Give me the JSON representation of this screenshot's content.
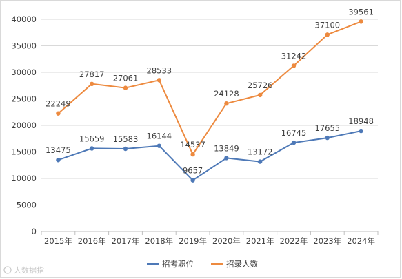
{
  "chart_data": {
    "type": "line",
    "categories": [
      "2015年",
      "2016年",
      "2017年",
      "2018年",
      "2019年",
      "2020年",
      "2021年",
      "2022年",
      "2023年",
      "2024年"
    ],
    "series": [
      {
        "name": "招考职位",
        "color": "#4e79b7",
        "values": [
          13475,
          15659,
          15583,
          16144,
          9657,
          13849,
          13172,
          16745,
          17655,
          18948
        ]
      },
      {
        "name": "招录人数",
        "color": "#ed8a3f",
        "values": [
          22249,
          27817,
          27061,
          28533,
          14537,
          24128,
          25726,
          31242,
          37100,
          39561
        ]
      }
    ],
    "yticks": [
      "0",
      "5000",
      "10000",
      "15000",
      "20000",
      "25000",
      "30000",
      "35000",
      "40000"
    ],
    "ylim": [
      0,
      40000
    ],
    "grid": true,
    "legend_position": "bottom"
  },
  "watermark": "大数据指"
}
